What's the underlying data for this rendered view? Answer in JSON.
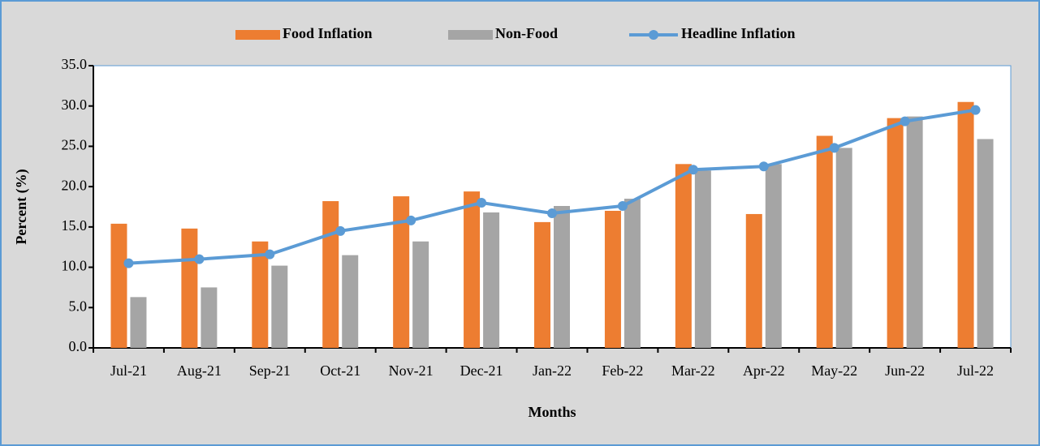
{
  "chart_data": {
    "type": "bar",
    "x_label": "Months",
    "y_label": "Percent (%)",
    "categories": [
      "Jul-21",
      "Aug-21",
      "Sep-21",
      "Oct-21",
      "Nov-21",
      "Dec-21",
      "Jan-22",
      "Feb-22",
      "Mar-22",
      "Apr-22",
      "May-22",
      "Jun-22",
      "Jul-22"
    ],
    "series": [
      {
        "name": "Food Inflation",
        "color": "#ed7d31",
        "type": "bar",
        "values": [
          15.4,
          14.8,
          13.2,
          18.2,
          18.8,
          19.4,
          15.6,
          17.0,
          22.8,
          16.6,
          26.3,
          28.5,
          30.5
        ]
      },
      {
        "name": "Non-Food",
        "color": "#a5a5a5",
        "type": "bar",
        "values": [
          6.3,
          7.5,
          10.2,
          11.5,
          13.2,
          16.8,
          17.6,
          18.5,
          22.0,
          22.8,
          24.8,
          28.7,
          25.9
        ]
      },
      {
        "name": "Headline Inflation",
        "color": "#5b9bd5",
        "type": "line",
        "values": [
          10.5,
          11.0,
          11.6,
          14.5,
          15.8,
          18.0,
          16.7,
          17.6,
          22.1,
          22.5,
          24.8,
          28.1,
          29.5
        ]
      }
    ],
    "ylim": [
      0,
      35
    ],
    "yticks": [
      {
        "value": 0,
        "label": "0.0"
      },
      {
        "value": 5,
        "label": "5.0"
      },
      {
        "value": 10,
        "label": "10.0"
      },
      {
        "value": 15,
        "label": "15.0"
      },
      {
        "value": 20,
        "label": "20.0"
      },
      {
        "value": 25,
        "label": "25.0"
      },
      {
        "value": 30,
        "label": "30.0"
      },
      {
        "value": 35,
        "label": "35.0"
      }
    ],
    "legend": "top"
  }
}
